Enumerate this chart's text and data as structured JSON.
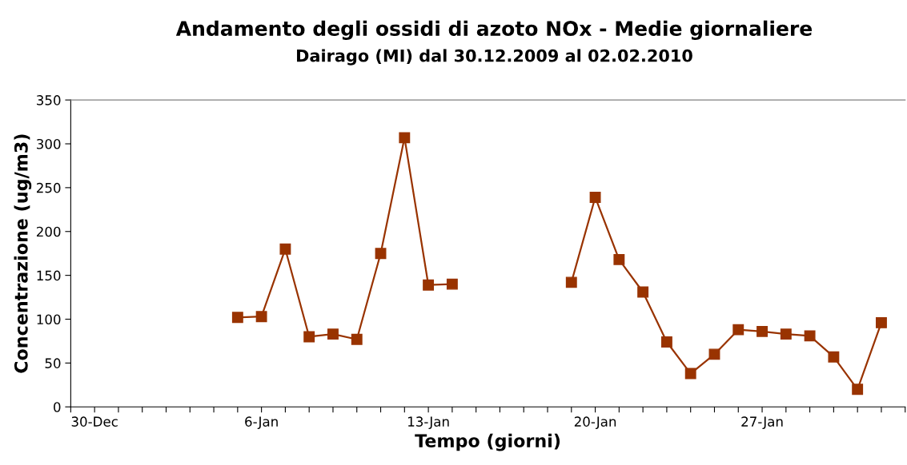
{
  "chart_data": {
    "type": "line",
    "title": "Andamento degli ossidi di azoto NOx - Medie giornaliere",
    "subtitle": "Dairago (MI) dal 30.12.2009 al 02.02.2010",
    "xlabel": "Tempo (giorni)",
    "ylabel": "Concentrazione (ug/m3)",
    "x": [
      "2010-01-05",
      "2010-01-06",
      "2010-01-07",
      "2010-01-08",
      "2010-01-09",
      "2010-01-10",
      "2010-01-11",
      "2010-01-12",
      "2010-01-13",
      "2010-01-14",
      "2010-01-15",
      "2010-01-16",
      "2010-01-17",
      "2010-01-18",
      "2010-01-19",
      "2010-01-20",
      "2010-01-21",
      "2010-01-22",
      "2010-01-23",
      "2010-01-24",
      "2010-01-25",
      "2010-01-26",
      "2010-01-27",
      "2010-01-28",
      "2010-01-29",
      "2010-01-30",
      "2010-01-31",
      "2010-02-01"
    ],
    "series": [
      {
        "color": "#993300",
        "values": [
          102,
          103,
          180,
          80,
          83,
          77,
          175,
          307,
          139,
          140,
          null,
          null,
          null,
          null,
          142,
          239,
          168,
          131,
          74,
          38,
          60,
          88,
          86,
          83,
          81,
          57,
          20,
          96
        ]
      }
    ],
    "marker": "square",
    "line_style": "solid",
    "grid": false,
    "legend": false,
    "xlim": [
      "2009-12-29",
      "2010-02-02"
    ],
    "xticks": [
      {
        "value": "2009-12-29",
        "label": null
      },
      {
        "value": "2009-12-30",
        "label": "30-Dec"
      },
      {
        "value": "2009-12-31",
        "label": null
      },
      {
        "value": "2010-01-01",
        "label": null
      },
      {
        "value": "2010-01-02",
        "label": null
      },
      {
        "value": "2010-01-03",
        "label": null
      },
      {
        "value": "2010-01-04",
        "label": null
      },
      {
        "value": "2010-01-05",
        "label": null
      },
      {
        "value": "2010-01-06",
        "label": "6-Jan"
      },
      {
        "value": "2010-01-07",
        "label": null
      },
      {
        "value": "2010-01-08",
        "label": null
      },
      {
        "value": "2010-01-09",
        "label": null
      },
      {
        "value": "2010-01-10",
        "label": null
      },
      {
        "value": "2010-01-11",
        "label": null
      },
      {
        "value": "2010-01-12",
        "label": null
      },
      {
        "value": "2010-01-13",
        "label": "13-Jan"
      },
      {
        "value": "2010-01-14",
        "label": null
      },
      {
        "value": "2010-01-15",
        "label": null
      },
      {
        "value": "2010-01-16",
        "label": null
      },
      {
        "value": "2010-01-17",
        "label": null
      },
      {
        "value": "2010-01-18",
        "label": null
      },
      {
        "value": "2010-01-19",
        "label": null
      },
      {
        "value": "2010-01-20",
        "label": "20-Jan"
      },
      {
        "value": "2010-01-21",
        "label": null
      },
      {
        "value": "2010-01-22",
        "label": null
      },
      {
        "value": "2010-01-23",
        "label": null
      },
      {
        "value": "2010-01-24",
        "label": null
      },
      {
        "value": "2010-01-25",
        "label": null
      },
      {
        "value": "2010-01-26",
        "label": null
      },
      {
        "value": "2010-01-27",
        "label": "27-Jan"
      },
      {
        "value": "2010-01-28",
        "label": null
      },
      {
        "value": "2010-01-29",
        "label": null
      },
      {
        "value": "2010-01-30",
        "label": null
      },
      {
        "value": "2010-01-31",
        "label": null
      },
      {
        "value": "2010-02-01",
        "label": null
      },
      {
        "value": "2010-02-02",
        "label": null
      }
    ],
    "ylim": [
      0,
      350
    ],
    "yticks": [
      0,
      50,
      100,
      150,
      200,
      250,
      300,
      350
    ]
  }
}
